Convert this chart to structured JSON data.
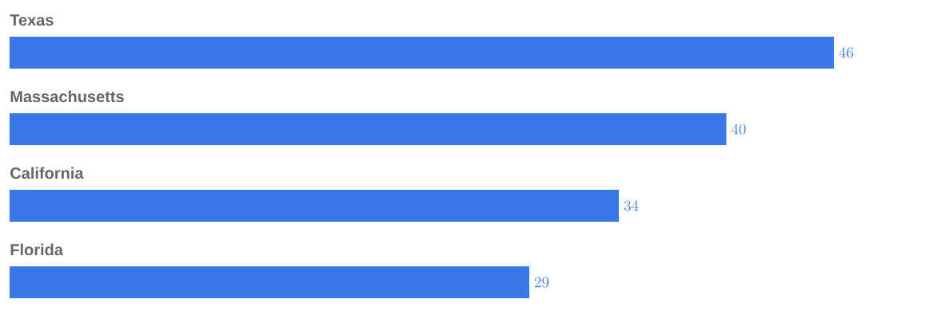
{
  "chart_data": {
    "type": "bar",
    "orientation": "horizontal",
    "categories": [
      "Texas",
      "Massachusetts",
      "California",
      "Florida"
    ],
    "values": [
      46,
      40,
      34,
      29
    ],
    "color": "#3b78e7",
    "data_labels": true
  }
}
